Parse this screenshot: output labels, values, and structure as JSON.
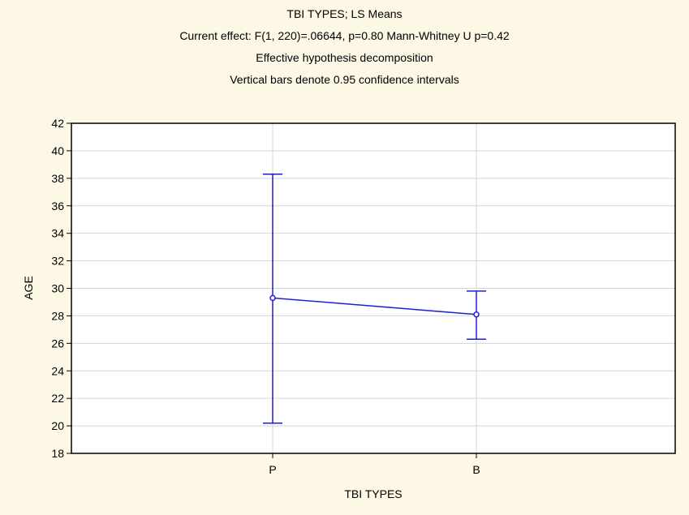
{
  "chart_data": {
    "type": "line",
    "title_lines": [
      "TBI TYPES; LS Means",
      "Current effect: F(1, 220)=.06644, p=0.80 Mann-Whitney U p=0.42",
      "Effective hypothesis decomposition",
      "Vertical bars denote 0.95 confidence intervals"
    ],
    "xlabel": "TBI TYPES",
    "ylabel": "AGE",
    "categories": [
      "P",
      "B"
    ],
    "series": [
      {
        "values": [
          29.3,
          28.1
        ],
        "ci_lower": [
          20.2,
          26.3
        ],
        "ci_upper": [
          38.3,
          29.8
        ]
      }
    ],
    "ylim": [
      18,
      42
    ],
    "yticks": [
      18,
      20,
      22,
      24,
      26,
      28,
      30,
      32,
      34,
      36,
      38,
      40,
      42
    ],
    "grid": true,
    "colors": {
      "series": "#1f1fd6",
      "background": "#fdf7e6",
      "plot_background": "#ffffff",
      "grid": "#d4d4d4"
    }
  }
}
